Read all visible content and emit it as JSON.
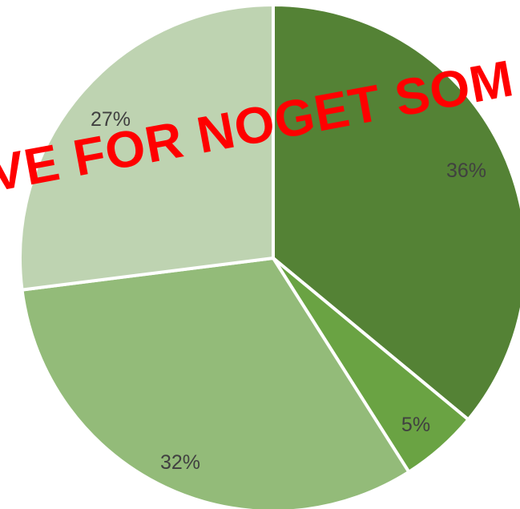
{
  "chart_data": {
    "type": "pie",
    "title": "",
    "values": [
      36,
      5,
      32,
      27
    ],
    "labels": [
      "36%",
      "5%",
      "32%",
      "27%"
    ],
    "colors": [
      "#548235",
      "#6aa343",
      "#93bb79",
      "#bed3b1"
    ],
    "start": "top, clockwise",
    "legend": "none"
  },
  "overlay": {
    "text": "VE FOR NOGET SOM",
    "color": "#ff0000"
  }
}
